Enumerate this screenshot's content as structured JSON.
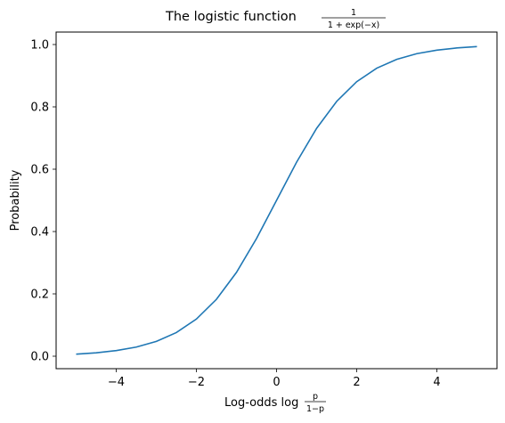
{
  "chart_data": {
    "type": "line",
    "title": {
      "prefix": "The logistic function",
      "numerator": "1",
      "denominator": "1 + exp(−x)"
    },
    "xlabel": {
      "prefix": "Log-odds log",
      "numerator": "p",
      "denominator": "1−p"
    },
    "ylabel": "Probability",
    "xlim": [
      -5.5,
      5.5
    ],
    "ylim": [
      -0.04,
      1.04
    ],
    "xticks": [
      -4,
      -2,
      0,
      2,
      4
    ],
    "xtick_labels": [
      "−4",
      "−2",
      "0",
      "2",
      "4"
    ],
    "yticks": [
      0.0,
      0.2,
      0.4,
      0.6,
      0.8,
      1.0
    ],
    "ytick_labels": [
      "0.0",
      "0.2",
      "0.4",
      "0.6",
      "0.8",
      "1.0"
    ],
    "grid": false,
    "series": [
      {
        "color": "#1f77b4",
        "x": [
          -5,
          -4.5,
          -4,
          -3.5,
          -3,
          -2.5,
          -2,
          -1.5,
          -1,
          -0.5,
          0,
          0.5,
          1,
          1.5,
          2,
          2.5,
          3,
          3.5,
          4,
          4.5,
          5
        ],
        "y": [
          0.0067,
          0.011,
          0.018,
          0.0293,
          0.0474,
          0.0759,
          0.1192,
          0.1824,
          0.2689,
          0.3775,
          0.5,
          0.6225,
          0.7311,
          0.8176,
          0.8808,
          0.9241,
          0.9526,
          0.9707,
          0.982,
          0.989,
          0.9933
        ]
      }
    ]
  }
}
